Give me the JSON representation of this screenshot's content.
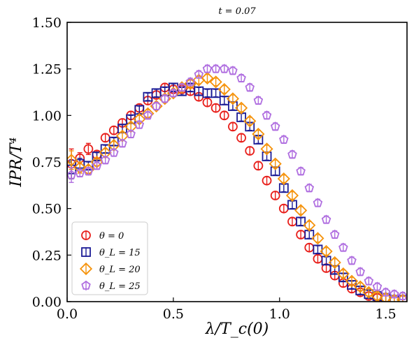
{
  "chart_data": {
    "type": "scatter",
    "title": "t = 0.07",
    "xlabel": "λ/T_c(0)",
    "ylabel": "IPR/T⁴",
    "xlim": [
      0.0,
      1.6
    ],
    "ylim": [
      0.0,
      1.5
    ],
    "x_ticks": [
      "0.0",
      "0.5",
      "1.0",
      "1.5"
    ],
    "y_ticks": [
      "0.00",
      "0.25",
      "0.50",
      "0.75",
      "1.00",
      "1.25",
      "1.50"
    ],
    "x_tick_values": [
      0.0,
      0.5,
      1.0,
      1.5
    ],
    "y_tick_values": [
      0.0,
      0.25,
      0.5,
      0.75,
      1.0,
      1.25,
      1.5
    ],
    "grid": false,
    "legend_position": "bottom-left",
    "series": [
      {
        "name": "θ = 0",
        "color": "#e8201c",
        "marker": "circle",
        "x": [
          0.02,
          0.06,
          0.1,
          0.14,
          0.18,
          0.22,
          0.26,
          0.3,
          0.34,
          0.38,
          0.42,
          0.46,
          0.5,
          0.54,
          0.58,
          0.62,
          0.66,
          0.7,
          0.74,
          0.78,
          0.82,
          0.86,
          0.9,
          0.94,
          0.98,
          1.02,
          1.06,
          1.1,
          1.14,
          1.18,
          1.22,
          1.26,
          1.3,
          1.34,
          1.38,
          1.42,
          1.46,
          1.5,
          1.54,
          1.58
        ],
        "y": [
          0.74,
          0.77,
          0.82,
          0.79,
          0.88,
          0.92,
          0.96,
          1.0,
          1.04,
          1.08,
          1.11,
          1.15,
          1.14,
          1.14,
          1.13,
          1.1,
          1.07,
          1.04,
          1.0,
          0.94,
          0.88,
          0.81,
          0.73,
          0.65,
          0.57,
          0.5,
          0.43,
          0.36,
          0.29,
          0.23,
          0.18,
          0.14,
          0.1,
          0.07,
          0.05,
          0.03,
          0.02,
          0.02,
          0.01,
          0.01
        ],
        "err": [
          0.08,
          0.03,
          0.03,
          0.02,
          0.02,
          0.02,
          0.02,
          0.02,
          0.02,
          0.02,
          0.02,
          0.02,
          0.02,
          0.02,
          0.02,
          0.02,
          0.02,
          0.02,
          0.02,
          0.02,
          0.02,
          0.02,
          0.02,
          0.02,
          0.02,
          0.02,
          0.02,
          0.02,
          0.02,
          0.02,
          0.02,
          0.02,
          0.02,
          0.02,
          0.02,
          0.02,
          0.02,
          0.02,
          0.02,
          0.02
        ]
      },
      {
        "name": "θ_L = 15",
        "color": "#1c1c96",
        "marker": "square",
        "x": [
          0.02,
          0.06,
          0.1,
          0.14,
          0.18,
          0.22,
          0.26,
          0.3,
          0.34,
          0.38,
          0.42,
          0.46,
          0.5,
          0.54,
          0.58,
          0.62,
          0.66,
          0.7,
          0.74,
          0.78,
          0.82,
          0.86,
          0.9,
          0.94,
          0.98,
          1.02,
          1.06,
          1.1,
          1.14,
          1.18,
          1.22,
          1.26,
          1.3,
          1.34,
          1.38,
          1.42,
          1.46,
          1.5,
          1.54,
          1.58
        ],
        "y": [
          0.71,
          0.74,
          0.73,
          0.78,
          0.82,
          0.86,
          0.93,
          0.98,
          1.03,
          1.1,
          1.12,
          1.13,
          1.15,
          1.13,
          1.15,
          1.13,
          1.12,
          1.12,
          1.08,
          1.05,
          0.99,
          0.94,
          0.87,
          0.78,
          0.7,
          0.61,
          0.52,
          0.43,
          0.36,
          0.28,
          0.22,
          0.17,
          0.13,
          0.09,
          0.06,
          0.04,
          0.03,
          0.02,
          0.01,
          0.01
        ],
        "err": [
          0.05,
          0.03,
          0.02,
          0.02,
          0.02,
          0.02,
          0.02,
          0.02,
          0.02,
          0.02,
          0.02,
          0.02,
          0.02,
          0.02,
          0.02,
          0.02,
          0.02,
          0.02,
          0.02,
          0.02,
          0.02,
          0.02,
          0.02,
          0.02,
          0.02,
          0.02,
          0.02,
          0.02,
          0.02,
          0.02,
          0.02,
          0.02,
          0.02,
          0.02,
          0.02,
          0.02,
          0.02,
          0.02,
          0.02,
          0.02
        ]
      },
      {
        "name": "θ_L = 20",
        "color": "#f5920a",
        "marker": "diamond",
        "x": [
          0.02,
          0.06,
          0.1,
          0.14,
          0.18,
          0.22,
          0.26,
          0.3,
          0.34,
          0.38,
          0.42,
          0.46,
          0.5,
          0.54,
          0.58,
          0.62,
          0.66,
          0.7,
          0.74,
          0.78,
          0.82,
          0.86,
          0.9,
          0.94,
          0.98,
          1.02,
          1.06,
          1.1,
          1.14,
          1.18,
          1.22,
          1.26,
          1.3,
          1.34,
          1.38,
          1.42,
          1.46,
          1.5,
          1.54,
          1.58
        ],
        "y": [
          0.76,
          0.72,
          0.71,
          0.75,
          0.8,
          0.84,
          0.89,
          0.94,
          0.98,
          1.01,
          1.05,
          1.09,
          1.12,
          1.15,
          1.17,
          1.19,
          1.2,
          1.18,
          1.14,
          1.09,
          1.04,
          0.97,
          0.9,
          0.82,
          0.74,
          0.66,
          0.57,
          0.49,
          0.41,
          0.34,
          0.27,
          0.21,
          0.15,
          0.11,
          0.08,
          0.05,
          0.03,
          0.02,
          0.01,
          0.01
        ],
        "err": [
          0.05,
          0.03,
          0.02,
          0.02,
          0.02,
          0.02,
          0.02,
          0.02,
          0.02,
          0.02,
          0.02,
          0.02,
          0.02,
          0.02,
          0.02,
          0.02,
          0.02,
          0.02,
          0.02,
          0.02,
          0.02,
          0.02,
          0.02,
          0.02,
          0.02,
          0.02,
          0.02,
          0.02,
          0.02,
          0.02,
          0.02,
          0.02,
          0.02,
          0.02,
          0.02,
          0.02,
          0.02,
          0.02,
          0.02,
          0.02
        ]
      },
      {
        "name": "θ_L = 25",
        "color": "#b06fe0",
        "marker": "pentagon",
        "x": [
          0.02,
          0.06,
          0.1,
          0.14,
          0.18,
          0.22,
          0.26,
          0.3,
          0.34,
          0.38,
          0.42,
          0.46,
          0.5,
          0.54,
          0.58,
          0.62,
          0.66,
          0.7,
          0.74,
          0.78,
          0.82,
          0.86,
          0.9,
          0.94,
          0.98,
          1.02,
          1.06,
          1.1,
          1.14,
          1.18,
          1.22,
          1.26,
          1.3,
          1.34,
          1.38,
          1.42,
          1.46,
          1.5,
          1.54,
          1.58
        ],
        "y": [
          0.68,
          0.69,
          0.7,
          0.73,
          0.76,
          0.8,
          0.85,
          0.9,
          0.95,
          1.0,
          1.05,
          1.09,
          1.12,
          1.15,
          1.18,
          1.22,
          1.25,
          1.25,
          1.25,
          1.24,
          1.2,
          1.15,
          1.08,
          1.0,
          0.94,
          0.87,
          0.79,
          0.7,
          0.61,
          0.53,
          0.44,
          0.36,
          0.29,
          0.22,
          0.16,
          0.11,
          0.08,
          0.05,
          0.04,
          0.03
        ],
        "err": [
          0.04,
          0.02,
          0.02,
          0.02,
          0.02,
          0.02,
          0.02,
          0.02,
          0.02,
          0.02,
          0.02,
          0.02,
          0.02,
          0.02,
          0.02,
          0.02,
          0.02,
          0.02,
          0.02,
          0.02,
          0.02,
          0.02,
          0.02,
          0.02,
          0.02,
          0.02,
          0.02,
          0.02,
          0.02,
          0.02,
          0.02,
          0.02,
          0.02,
          0.02,
          0.02,
          0.02,
          0.02,
          0.02,
          0.02,
          0.02
        ]
      }
    ]
  }
}
